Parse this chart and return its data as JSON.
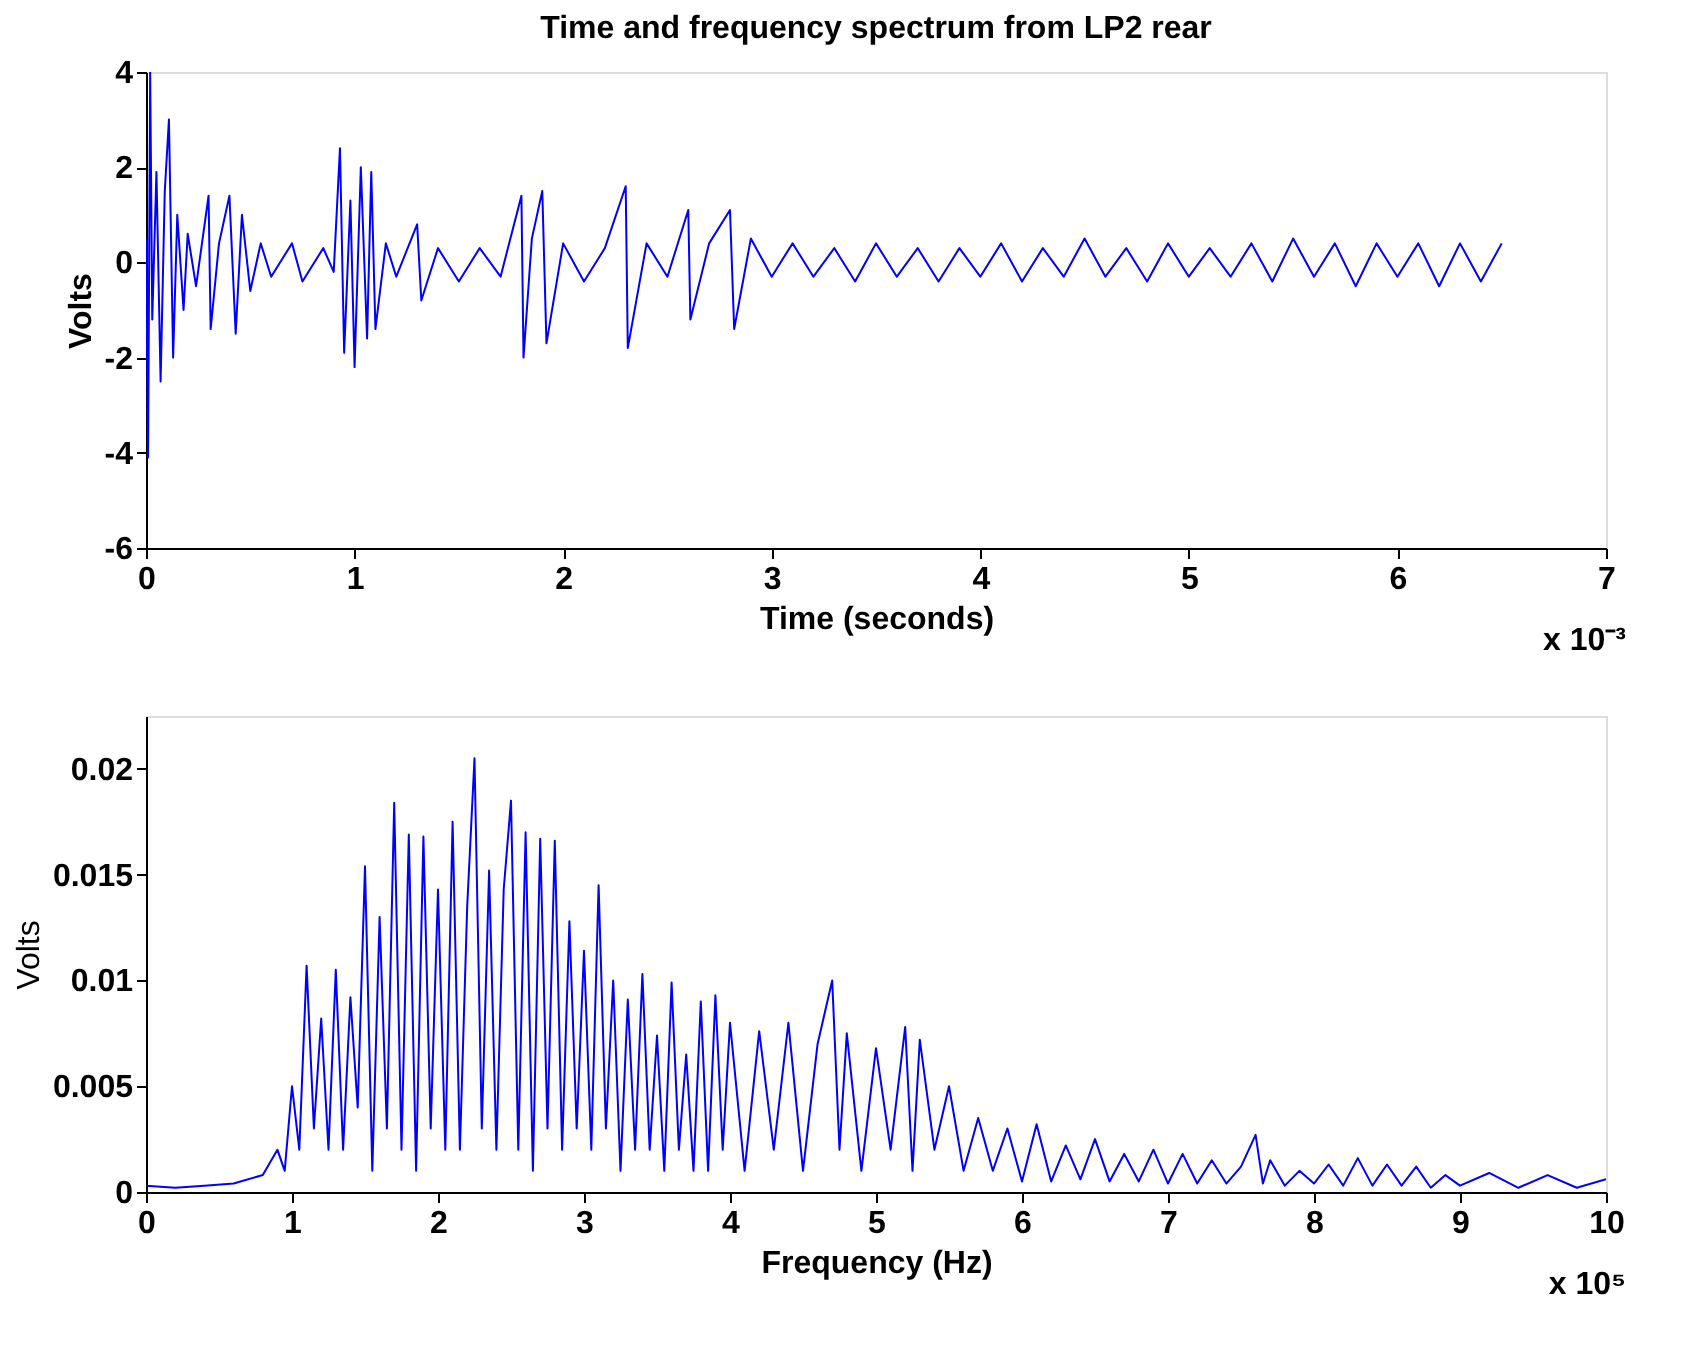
{
  "chart_data": [
    {
      "type": "line",
      "title": "Time and frequency spectrum from LP2 rear",
      "xlabel": "Time (seconds)",
      "ylabel": "Volts",
      "annotations": [
        "x 10⁻³"
      ],
      "xlim": [
        0,
        7
      ],
      "ylim": [
        -6,
        4
      ],
      "xticks": [
        0,
        1,
        2,
        3,
        4,
        5,
        6,
        7
      ],
      "yticks": [
        -6,
        -4,
        -2,
        0,
        2,
        4
      ],
      "x": [
        0,
        0.01,
        0.02,
        0.03,
        0.05,
        0.07,
        0.09,
        0.11,
        0.13,
        0.15,
        0.18,
        0.2,
        0.24,
        0.3,
        0.31,
        0.35,
        0.4,
        0.43,
        0.46,
        0.5,
        0.55,
        0.6,
        0.7,
        0.75,
        0.85,
        0.9,
        0.93,
        0.95,
        0.98,
        1.0,
        1.03,
        1.06,
        1.08,
        1.1,
        1.15,
        1.2,
        1.3,
        1.32,
        1.4,
        1.5,
        1.6,
        1.7,
        1.8,
        1.81,
        1.85,
        1.9,
        1.92,
        2.0,
        2.1,
        2.2,
        2.3,
        2.31,
        2.4,
        2.5,
        2.6,
        2.61,
        2.7,
        2.8,
        2.82,
        2.9,
        3.0,
        3.1,
        3.2,
        3.3,
        3.4,
        3.5,
        3.6,
        3.7,
        3.8,
        3.9,
        4.0,
        4.1,
        4.2,
        4.3,
        4.4,
        4.5,
        4.6,
        4.7,
        4.8,
        4.9,
        5.0,
        5.1,
        5.2,
        5.3,
        5.4,
        5.5,
        5.6,
        5.7,
        5.8,
        5.9,
        6.0,
        6.1,
        6.2,
        6.3,
        6.4,
        6.5
      ],
      "series": [
        {
          "color": "#0000ff",
          "values": [
            0.5,
            -4.1,
            4.0,
            -1.2,
            1.9,
            -2.5,
            1.5,
            3.0,
            -2.0,
            1.0,
            -1.0,
            0.6,
            -0.5,
            1.4,
            -1.4,
            0.4,
            1.4,
            -1.5,
            1.0,
            -0.6,
            0.4,
            -0.3,
            0.4,
            -0.4,
            0.3,
            -0.2,
            2.4,
            -1.9,
            1.3,
            -2.2,
            2.0,
            -1.6,
            1.9,
            -1.4,
            0.4,
            -0.3,
            0.8,
            -0.8,
            0.3,
            -0.4,
            0.3,
            -0.3,
            1.4,
            -2.0,
            0.5,
            1.5,
            -1.7,
            0.4,
            -0.4,
            0.3,
            1.6,
            -1.8,
            0.4,
            -0.3,
            1.1,
            -1.2,
            0.4,
            1.1,
            -1.4,
            0.5,
            -0.3,
            0.4,
            -0.3,
            0.3,
            -0.4,
            0.4,
            -0.3,
            0.3,
            -0.4,
            0.3,
            -0.3,
            0.4,
            -0.4,
            0.3,
            -0.3,
            0.5,
            -0.3,
            0.3,
            -0.4,
            0.4,
            -0.3,
            0.3,
            -0.3,
            0.4,
            -0.4,
            0.5,
            -0.3,
            0.4,
            -0.5,
            0.4,
            -0.3,
            0.4,
            -0.5,
            0.4,
            -0.4,
            0.4
          ]
        }
      ]
    },
    {
      "type": "line",
      "xlabel": "Frequency (Hz)",
      "ylabel": "Volts",
      "annotations": [
        "x 10⁵"
      ],
      "xlim": [
        0,
        10
      ],
      "ylim": [
        0,
        0.0225
      ],
      "xticks": [
        0,
        1,
        2,
        3,
        4,
        5,
        6,
        7,
        8,
        9,
        10
      ],
      "yticks": [
        0,
        0.005,
        0.01,
        0.015,
        0.02
      ],
      "x": [
        0,
        0.2,
        0.4,
        0.6,
        0.8,
        0.9,
        0.95,
        1.0,
        1.05,
        1.1,
        1.15,
        1.2,
        1.25,
        1.3,
        1.35,
        1.4,
        1.45,
        1.5,
        1.55,
        1.6,
        1.65,
        1.7,
        1.75,
        1.8,
        1.85,
        1.9,
        1.95,
        2.0,
        2.05,
        2.1,
        2.15,
        2.2,
        2.25,
        2.3,
        2.35,
        2.4,
        2.45,
        2.5,
        2.55,
        2.6,
        2.65,
        2.7,
        2.75,
        2.8,
        2.85,
        2.9,
        2.95,
        3.0,
        3.05,
        3.1,
        3.15,
        3.2,
        3.25,
        3.3,
        3.35,
        3.4,
        3.45,
        3.5,
        3.55,
        3.6,
        3.65,
        3.7,
        3.75,
        3.8,
        3.85,
        3.9,
        3.95,
        4.0,
        4.1,
        4.2,
        4.3,
        4.4,
        4.5,
        4.6,
        4.7,
        4.75,
        4.8,
        4.9,
        5.0,
        5.1,
        5.2,
        5.25,
        5.3,
        5.4,
        5.5,
        5.6,
        5.7,
        5.8,
        5.9,
        6.0,
        6.1,
        6.2,
        6.3,
        6.4,
        6.5,
        6.6,
        6.7,
        6.8,
        6.9,
        7.0,
        7.1,
        7.2,
        7.3,
        7.4,
        7.5,
        7.6,
        7.65,
        7.7,
        7.8,
        7.9,
        8.0,
        8.1,
        8.2,
        8.3,
        8.4,
        8.5,
        8.6,
        8.7,
        8.8,
        8.9,
        9.0,
        9.2,
        9.4,
        9.6,
        9.8,
        10.0
      ],
      "series": [
        {
          "color": "#0000ff",
          "values": [
            0.0003,
            0.0002,
            0.0003,
            0.0004,
            0.0008,
            0.002,
            0.001,
            0.005,
            0.002,
            0.0107,
            0.003,
            0.0082,
            0.002,
            0.0105,
            0.002,
            0.0092,
            0.004,
            0.0154,
            0.001,
            0.013,
            0.003,
            0.0184,
            0.002,
            0.0169,
            0.001,
            0.0168,
            0.003,
            0.0143,
            0.002,
            0.0175,
            0.002,
            0.0135,
            0.0205,
            0.003,
            0.0152,
            0.002,
            0.0143,
            0.0185,
            0.002,
            0.017,
            0.001,
            0.0167,
            0.003,
            0.0166,
            0.002,
            0.0128,
            0.003,
            0.0114,
            0.002,
            0.0145,
            0.003,
            0.01,
            0.001,
            0.0091,
            0.002,
            0.0103,
            0.002,
            0.0074,
            0.001,
            0.0099,
            0.002,
            0.0065,
            0.001,
            0.009,
            0.001,
            0.0093,
            0.002,
            0.008,
            0.001,
            0.0076,
            0.002,
            0.008,
            0.001,
            0.007,
            0.01,
            0.002,
            0.0075,
            0.001,
            0.0068,
            0.002,
            0.0078,
            0.001,
            0.0072,
            0.002,
            0.005,
            0.001,
            0.0035,
            0.001,
            0.003,
            0.0005,
            0.0032,
            0.0005,
            0.0022,
            0.0006,
            0.0025,
            0.0005,
            0.0018,
            0.0005,
            0.002,
            0.0004,
            0.0018,
            0.0004,
            0.0015,
            0.0004,
            0.0012,
            0.0027,
            0.0004,
            0.0015,
            0.0003,
            0.001,
            0.0004,
            0.0013,
            0.0003,
            0.0016,
            0.0003,
            0.0013,
            0.0003,
            0.0012,
            0.0002,
            0.0008,
            0.0003,
            0.0009,
            0.0002,
            0.0008,
            0.0002,
            0.0006
          ]
        }
      ]
    }
  ]
}
